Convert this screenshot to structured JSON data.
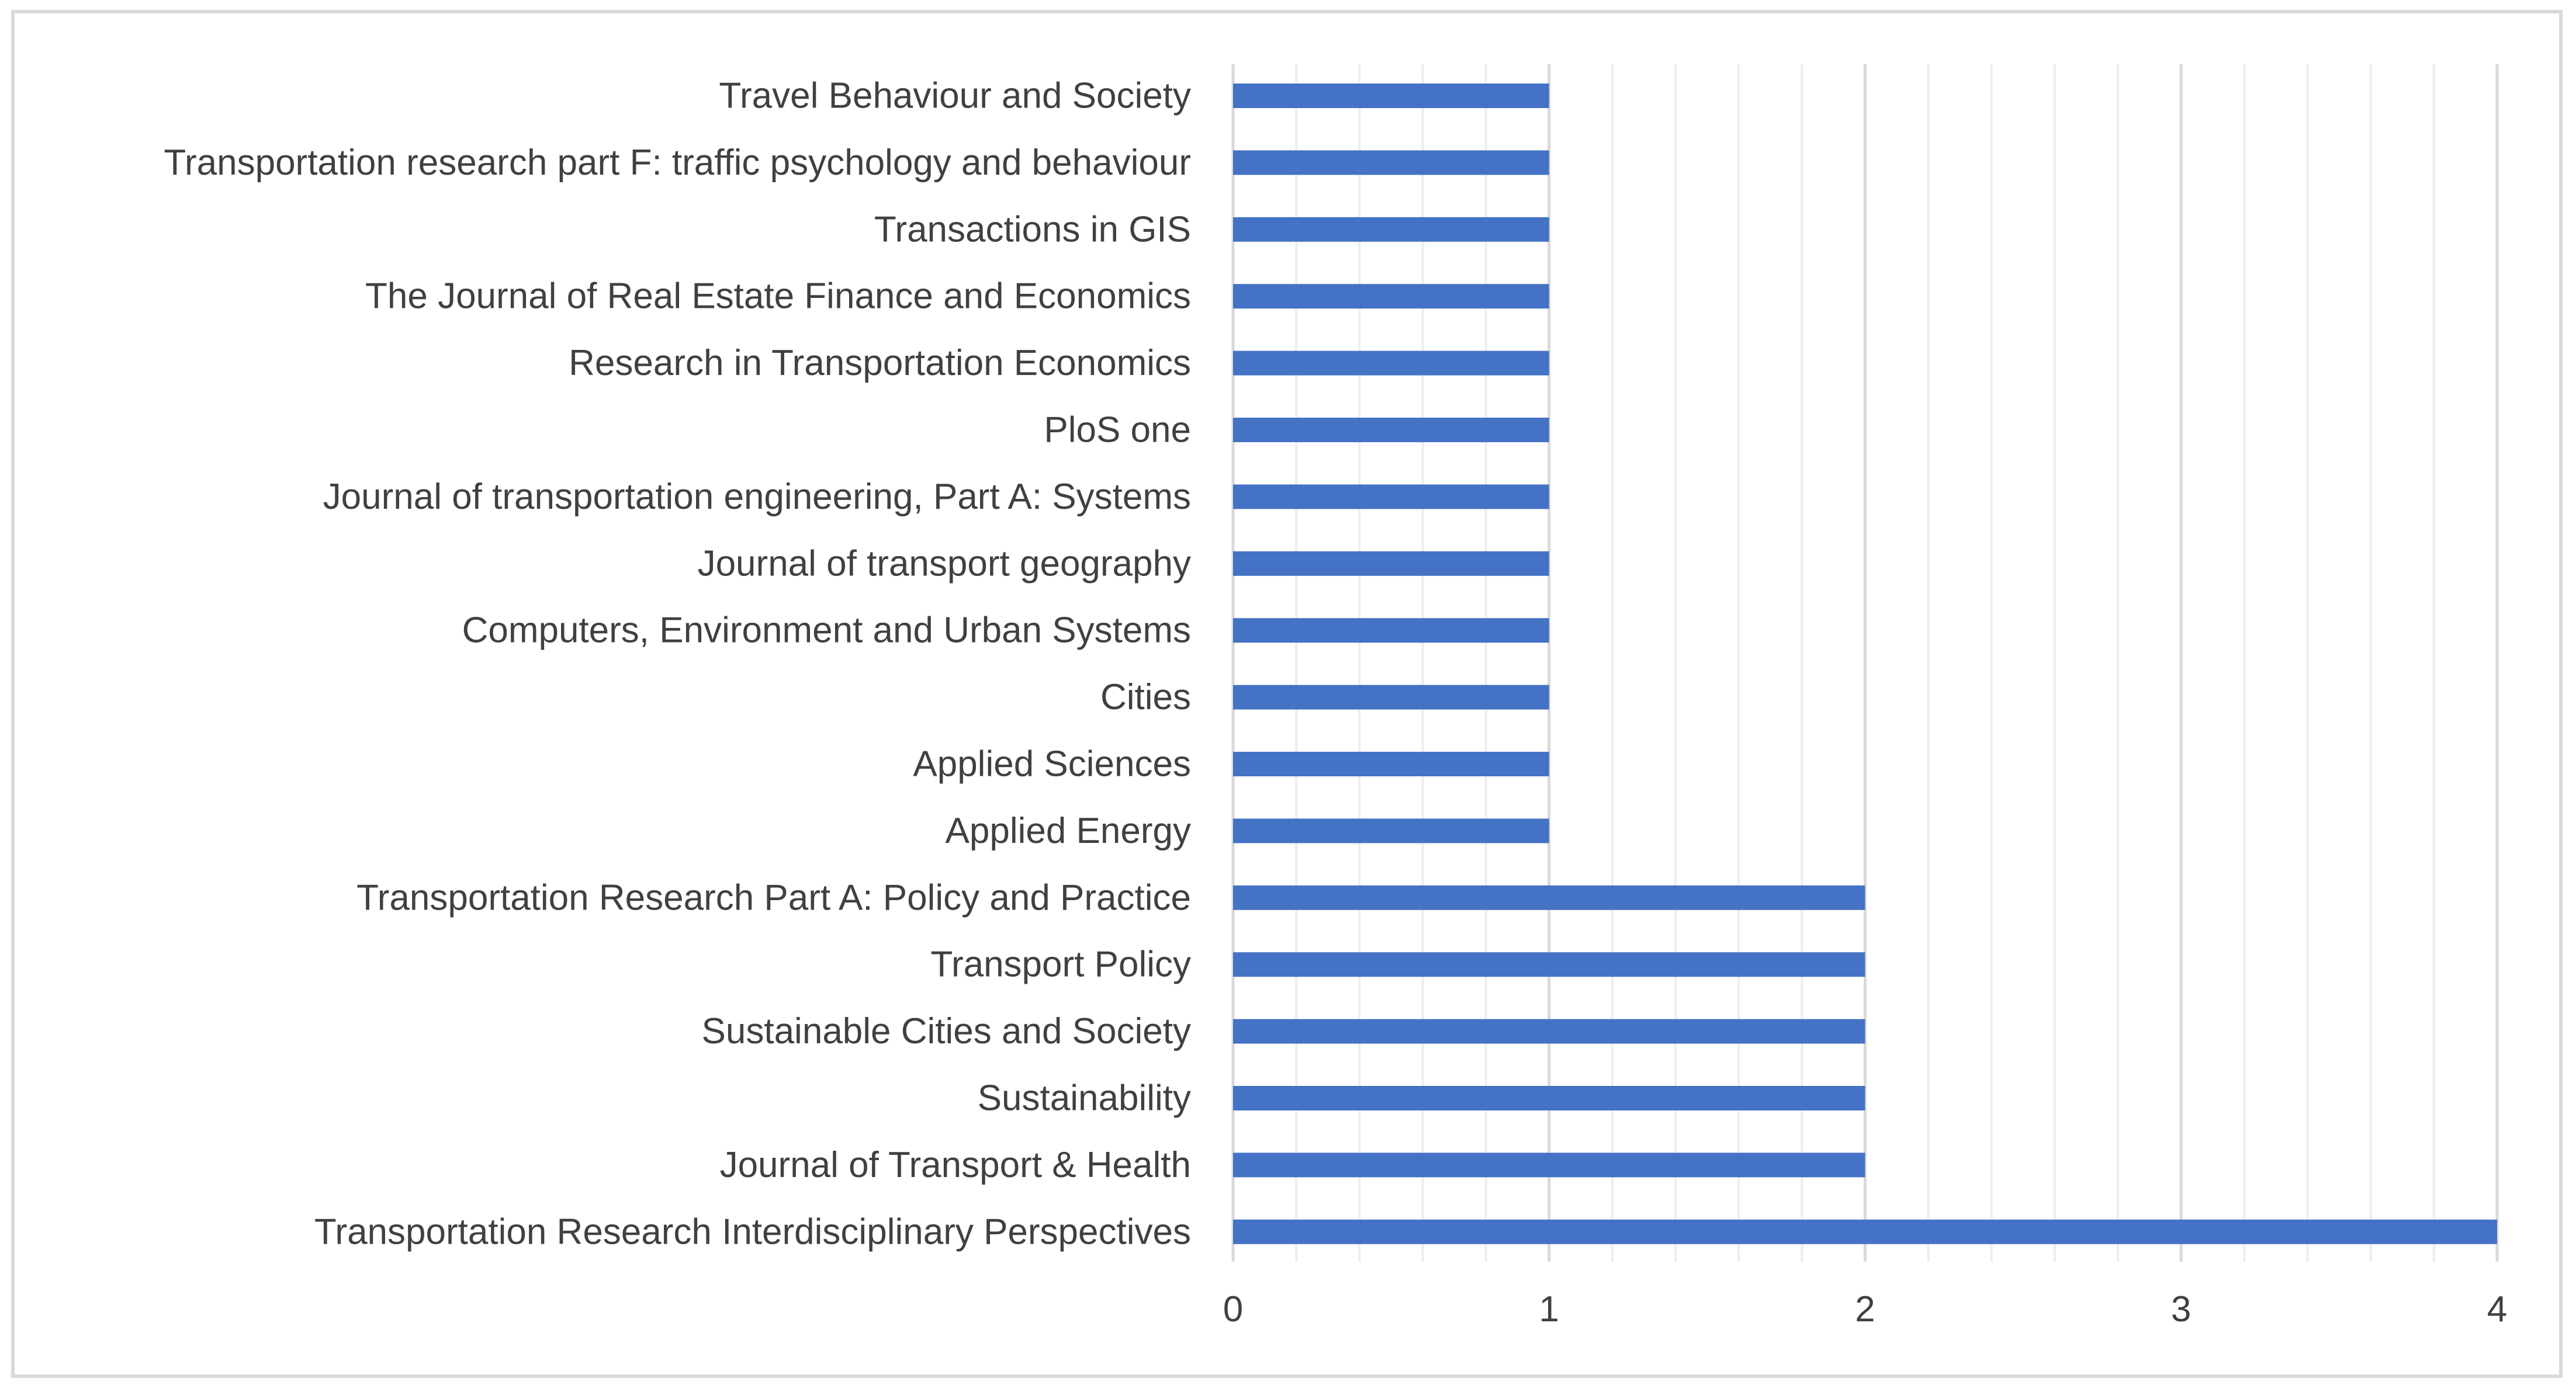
{
  "chart_data": {
    "type": "bar",
    "orientation": "horizontal",
    "title": "",
    "xlabel": "",
    "ylabel": "",
    "xlim": [
      0,
      4
    ],
    "major_ticks": [
      0,
      1,
      2,
      3,
      4
    ],
    "tick_labels": [
      "0",
      "1",
      "2",
      "3",
      "4"
    ],
    "minor_step": 0.2,
    "grid": true,
    "categories": [
      "Travel Behaviour and Society",
      "Transportation research part F: traffic psychology and behaviour",
      "Transactions in GIS",
      "The Journal of Real Estate Finance and Economics",
      "Research in Transportation Economics",
      "PloS one",
      "Journal of transportation engineering, Part A: Systems",
      "Journal of transport geography",
      "Computers, Environment and Urban Systems",
      "Cities",
      "Applied Sciences",
      "Applied Energy",
      "Transportation Research Part A: Policy and Practice",
      "Transport Policy",
      "Sustainable Cities and Society",
      "Sustainability",
      "Journal of Transport & Health",
      "Transportation Research Interdisciplinary Perspectives"
    ],
    "values": [
      1,
      1,
      1,
      1,
      1,
      1,
      1,
      1,
      1,
      1,
      1,
      1,
      2,
      2,
      2,
      2,
      2,
      4
    ],
    "bar_color": "#4472C4",
    "major_grid_color": "#D9D9D9",
    "minor_grid_color": "#EDEDED",
    "text_color": "#404040",
    "border_color": "#D9D9D9"
  }
}
